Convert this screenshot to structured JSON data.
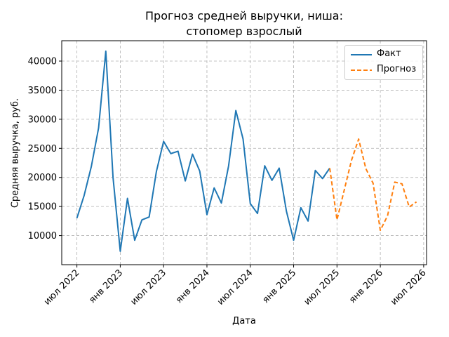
{
  "chart_data": {
    "type": "line",
    "title": "Прогноз средней выручки, ниша:\nстопомер взрослый",
    "title_lines": [
      "Прогноз средней выручки, ниша:",
      "стопомер взрослый"
    ],
    "xlabel": "Дата",
    "ylabel": "Средняя выручка, руб.",
    "x_ticks": [
      "июл 2022",
      "янв 2023",
      "июл 2023",
      "янв 2024",
      "июл 2024",
      "янв 2025",
      "июл 2025",
      "янв 2026",
      "июл 2026"
    ],
    "y_ticks": [
      "10000",
      "15000",
      "20000",
      "25000",
      "30000",
      "35000",
      "40000"
    ],
    "ylim": [
      5000,
      43500
    ],
    "xlim": [
      "2022-05",
      "2026-07"
    ],
    "grid": true,
    "legend_position": "top-right",
    "series": [
      {
        "name": "Факт",
        "color": "#1f77b4",
        "style": "solid",
        "x": [
          "2022-07",
          "2022-08",
          "2022-09",
          "2022-10",
          "2022-11",
          "2022-12",
          "2023-01",
          "2023-02",
          "2023-03",
          "2023-04",
          "2023-05",
          "2023-06",
          "2023-07",
          "2023-08",
          "2023-09",
          "2023-10",
          "2023-11",
          "2023-12",
          "2024-01",
          "2024-02",
          "2024-03",
          "2024-04",
          "2024-05",
          "2024-06",
          "2024-07",
          "2024-08",
          "2024-09",
          "2024-10",
          "2024-11",
          "2024-12",
          "2025-01",
          "2025-02",
          "2025-03",
          "2025-04",
          "2025-05",
          "2025-06"
        ],
        "values": [
          13000,
          16900,
          21900,
          28500,
          41700,
          20000,
          7300,
          16400,
          9200,
          12700,
          13200,
          21000,
          26200,
          24100,
          24500,
          19400,
          24000,
          21100,
          13600,
          18200,
          15600,
          22000,
          31500,
          26600,
          15500,
          13800,
          22000,
          19500,
          21600,
          14200,
          9200,
          14800,
          12500,
          21200,
          19800,
          21600
        ]
      },
      {
        "name": "Прогноз",
        "color": "#ff7f0e",
        "style": "dashed",
        "x": [
          "2025-06",
          "2025-07",
          "2025-08",
          "2025-09",
          "2025-10",
          "2025-11",
          "2025-12",
          "2026-01",
          "2026-02",
          "2026-03",
          "2026-04",
          "2026-05",
          "2026-06"
        ],
        "values": [
          21600,
          12700,
          17800,
          22900,
          26600,
          21500,
          19000,
          10900,
          13400,
          19200,
          18900,
          14900,
          15800
        ]
      }
    ]
  }
}
